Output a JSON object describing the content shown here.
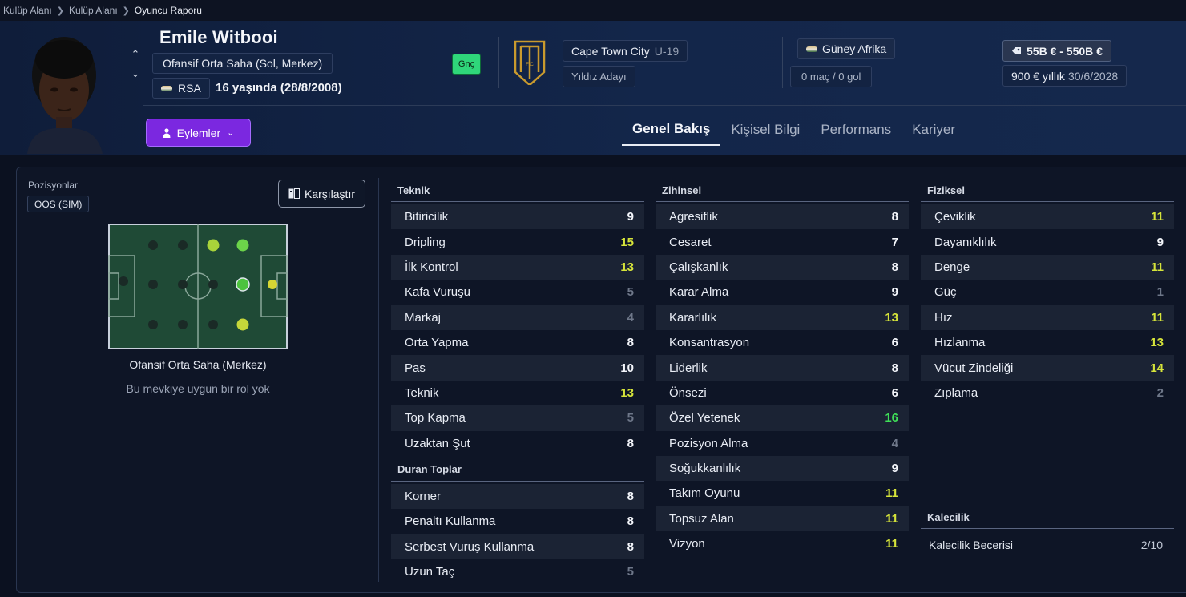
{
  "breadcrumb": [
    "Kulüp Alanı",
    "Kulüp Alanı",
    "Oyuncu Raporu"
  ],
  "player": {
    "name": "Emile Witbooi",
    "position": "Ofansif Orta Saha (Sol, Merkez)",
    "nationality_code": "RSA",
    "age_text": "16 yaşında (28/8/2008)",
    "youth_badge": "Gnç"
  },
  "club": {
    "name": "Cape Town City",
    "team": "U-19",
    "role": "Yıldız Adayı"
  },
  "country": {
    "name": "Güney Afrika",
    "caps": "0 maç / 0 gol"
  },
  "contract": {
    "value": "55B € - 550B €",
    "wage": "900 € yıllık",
    "expiry": "30/6/2028"
  },
  "actions_label": "Eylemler",
  "tabs": [
    "Genel Bakış",
    "Kişisel Bilgi",
    "Performans",
    "Kariyer"
  ],
  "positions": {
    "label": "Pozisyonlar",
    "chip": "OOS (SIM)",
    "compare_label": "Karşılaştır",
    "caption": "Ofansif Orta Saha (Merkez)",
    "note": "Bu mevkiye uygun bir rol yok"
  },
  "colors": {
    "white": "#f4f6fb",
    "gray": "#6e7789",
    "yellow": "#d6e43a",
    "green": "#3fe058",
    "accent": "#7b28e0"
  },
  "teknik": {
    "title": "Teknik",
    "rows": [
      {
        "label": "Bitiricilik",
        "value": "9",
        "tone": "white"
      },
      {
        "label": "Dripling",
        "value": "15",
        "tone": "yellow"
      },
      {
        "label": "İlk Kontrol",
        "value": "13",
        "tone": "yellow"
      },
      {
        "label": "Kafa Vuruşu",
        "value": "5",
        "tone": "gray"
      },
      {
        "label": "Markaj",
        "value": "4",
        "tone": "gray"
      },
      {
        "label": "Orta Yapma",
        "value": "8",
        "tone": "white"
      },
      {
        "label": "Pas",
        "value": "10",
        "tone": "white"
      },
      {
        "label": "Teknik",
        "value": "13",
        "tone": "yellow"
      },
      {
        "label": "Top Kapma",
        "value": "5",
        "tone": "gray"
      },
      {
        "label": "Uzaktan Şut",
        "value": "8",
        "tone": "white"
      }
    ]
  },
  "duran": {
    "title": "Duran Toplar",
    "rows": [
      {
        "label": "Korner",
        "value": "8",
        "tone": "white"
      },
      {
        "label": "Penaltı Kullanma",
        "value": "8",
        "tone": "white"
      },
      {
        "label": "Serbest Vuruş Kullanma",
        "value": "8",
        "tone": "white"
      },
      {
        "label": "Uzun Taç",
        "value": "5",
        "tone": "gray"
      }
    ]
  },
  "zihinsel": {
    "title": "Zihinsel",
    "rows": [
      {
        "label": "Agresiflik",
        "value": "8",
        "tone": "white"
      },
      {
        "label": "Cesaret",
        "value": "7",
        "tone": "white"
      },
      {
        "label": "Çalışkanlık",
        "value": "8",
        "tone": "white"
      },
      {
        "label": "Karar Alma",
        "value": "9",
        "tone": "white"
      },
      {
        "label": "Kararlılık",
        "value": "13",
        "tone": "yellow"
      },
      {
        "label": "Konsantrasyon",
        "value": "6",
        "tone": "white"
      },
      {
        "label": "Liderlik",
        "value": "8",
        "tone": "white"
      },
      {
        "label": "Önsezi",
        "value": "6",
        "tone": "white"
      },
      {
        "label": "Özel Yetenek",
        "value": "16",
        "tone": "green"
      },
      {
        "label": "Pozisyon Alma",
        "value": "4",
        "tone": "gray"
      },
      {
        "label": "Soğukkanlılık",
        "value": "9",
        "tone": "white"
      },
      {
        "label": "Takım Oyunu",
        "value": "11",
        "tone": "yellow"
      },
      {
        "label": "Topsuz Alan",
        "value": "11",
        "tone": "yellow"
      },
      {
        "label": "Vizyon",
        "value": "11",
        "tone": "yellow"
      }
    ]
  },
  "fiziksel": {
    "title": "Fiziksel",
    "rows": [
      {
        "label": "Çeviklik",
        "value": "11",
        "tone": "yellow"
      },
      {
        "label": "Dayanıklılık",
        "value": "9",
        "tone": "white"
      },
      {
        "label": "Denge",
        "value": "11",
        "tone": "yellow"
      },
      {
        "label": "Güç",
        "value": "1",
        "tone": "gray"
      },
      {
        "label": "Hız",
        "value": "11",
        "tone": "yellow"
      },
      {
        "label": "Hızlanma",
        "value": "13",
        "tone": "yellow"
      },
      {
        "label": "Vücut Zindeliği",
        "value": "14",
        "tone": "yellow"
      },
      {
        "label": "Zıplama",
        "value": "2",
        "tone": "gray"
      }
    ]
  },
  "kalecilik": {
    "title": "Kalecilik",
    "label": "Kalecilik Becerisi",
    "value": "2/10"
  }
}
